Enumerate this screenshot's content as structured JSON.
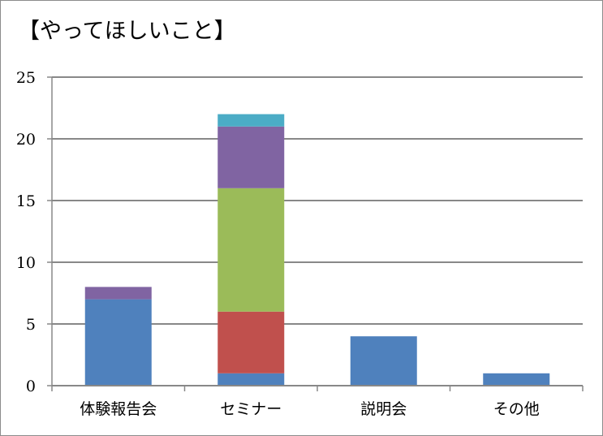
{
  "chart_data": {
    "type": "bar",
    "stacked": true,
    "title": "【やってほしいこと】",
    "xlabel": "",
    "ylabel": "",
    "categories": [
      "体験報告会",
      "セミナー",
      "説明会",
      "その他"
    ],
    "ylim": [
      0,
      25
    ],
    "yticks": [
      0,
      5,
      10,
      15,
      20,
      25
    ],
    "grid": true,
    "legend": "none",
    "series": [
      {
        "color": "#4F81BD",
        "values": [
          7,
          1,
          4,
          1
        ]
      },
      {
        "color": "#C0504D",
        "values": [
          0,
          5,
          0,
          0
        ]
      },
      {
        "color": "#9BBB59",
        "values": [
          0,
          10,
          0,
          0
        ]
      },
      {
        "color": "#8064A2",
        "values": [
          1,
          5,
          0,
          0
        ]
      },
      {
        "color": "#4BACC6",
        "values": [
          0,
          1,
          0,
          0
        ]
      }
    ]
  }
}
